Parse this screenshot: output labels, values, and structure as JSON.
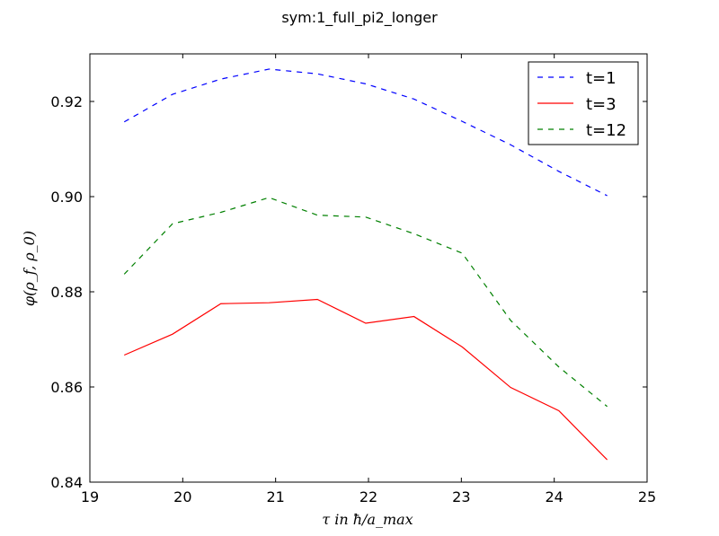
{
  "chart_data": {
    "type": "line",
    "title": "sym:1_full_pi2_longer",
    "xlabel": "τ in ħ/a_max",
    "ylabel": "φ(ρ_f, ρ_0)",
    "xlim": [
      19,
      25
    ],
    "ylim": [
      0.84,
      0.93
    ],
    "xticks": [
      19,
      20,
      21,
      22,
      23,
      24,
      25
    ],
    "xtick_labels": [
      "19",
      "20",
      "21",
      "22",
      "23",
      "24",
      "25"
    ],
    "yticks": [
      0.84,
      0.86,
      0.88,
      0.9,
      0.92
    ],
    "ytick_labels": [
      "0.84",
      "0.86",
      "0.88",
      "0.90",
      "0.92"
    ],
    "grid": false,
    "legend_position": "top-right",
    "series": [
      {
        "name": "t=1",
        "color": "#0000ff",
        "style": "dashed",
        "x": [
          19.37,
          19.89,
          20.41,
          20.93,
          21.45,
          21.97,
          22.49,
          23.01,
          23.53,
          24.05,
          24.57
        ],
        "y": [
          0.9157,
          0.9215,
          0.9247,
          0.9268,
          0.9258,
          0.9237,
          0.9205,
          0.9158,
          0.9109,
          0.9053,
          0.9002
        ]
      },
      {
        "name": "t=3",
        "color": "#ff0000",
        "style": "solid",
        "x": [
          19.37,
          19.89,
          20.41,
          20.93,
          21.45,
          21.97,
          22.49,
          23.01,
          23.53,
          24.05,
          24.57
        ],
        "y": [
          0.8667,
          0.8711,
          0.8775,
          0.8777,
          0.8784,
          0.8734,
          0.8748,
          0.8684,
          0.8599,
          0.855,
          0.8447
        ]
      },
      {
        "name": "t=12",
        "color": "#008000",
        "style": "dashed",
        "x": [
          19.37,
          19.89,
          20.41,
          20.93,
          21.45,
          21.97,
          22.49,
          23.01,
          23.53,
          24.05,
          24.57
        ],
        "y": [
          0.8837,
          0.8943,
          0.8967,
          0.8998,
          0.8961,
          0.8957,
          0.8922,
          0.8881,
          0.874,
          0.8642,
          0.8559
        ]
      }
    ]
  }
}
